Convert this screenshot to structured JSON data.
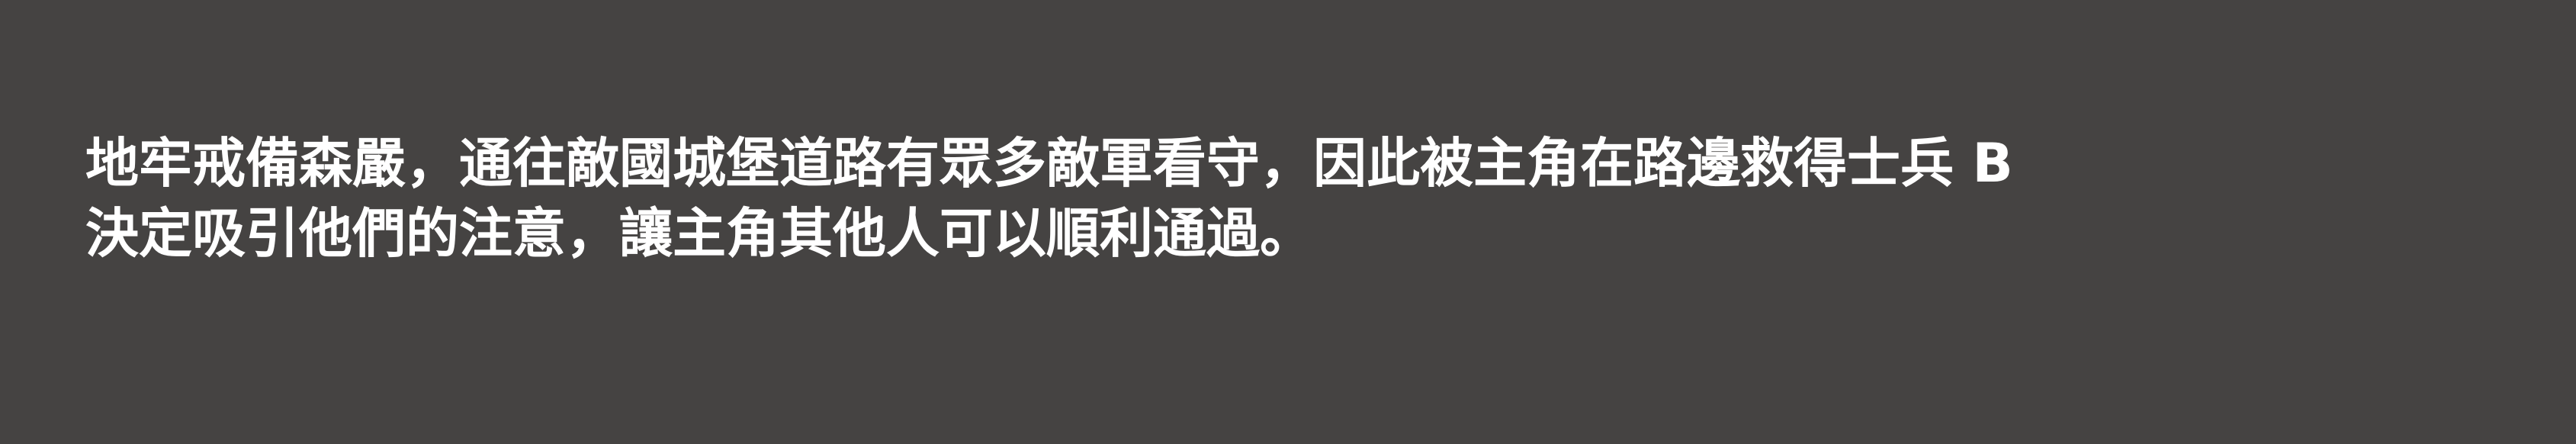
{
  "background_color": "#454342",
  "text_color": "#ffffff",
  "caption": {
    "line1": "地牢戒備森嚴，通往敵國城堡道路有眾多敵軍看守，因此被主角在路邊救得士兵 B",
    "line2": "決定吸引他們的注意，讓主角其他人可以順利通過。"
  }
}
